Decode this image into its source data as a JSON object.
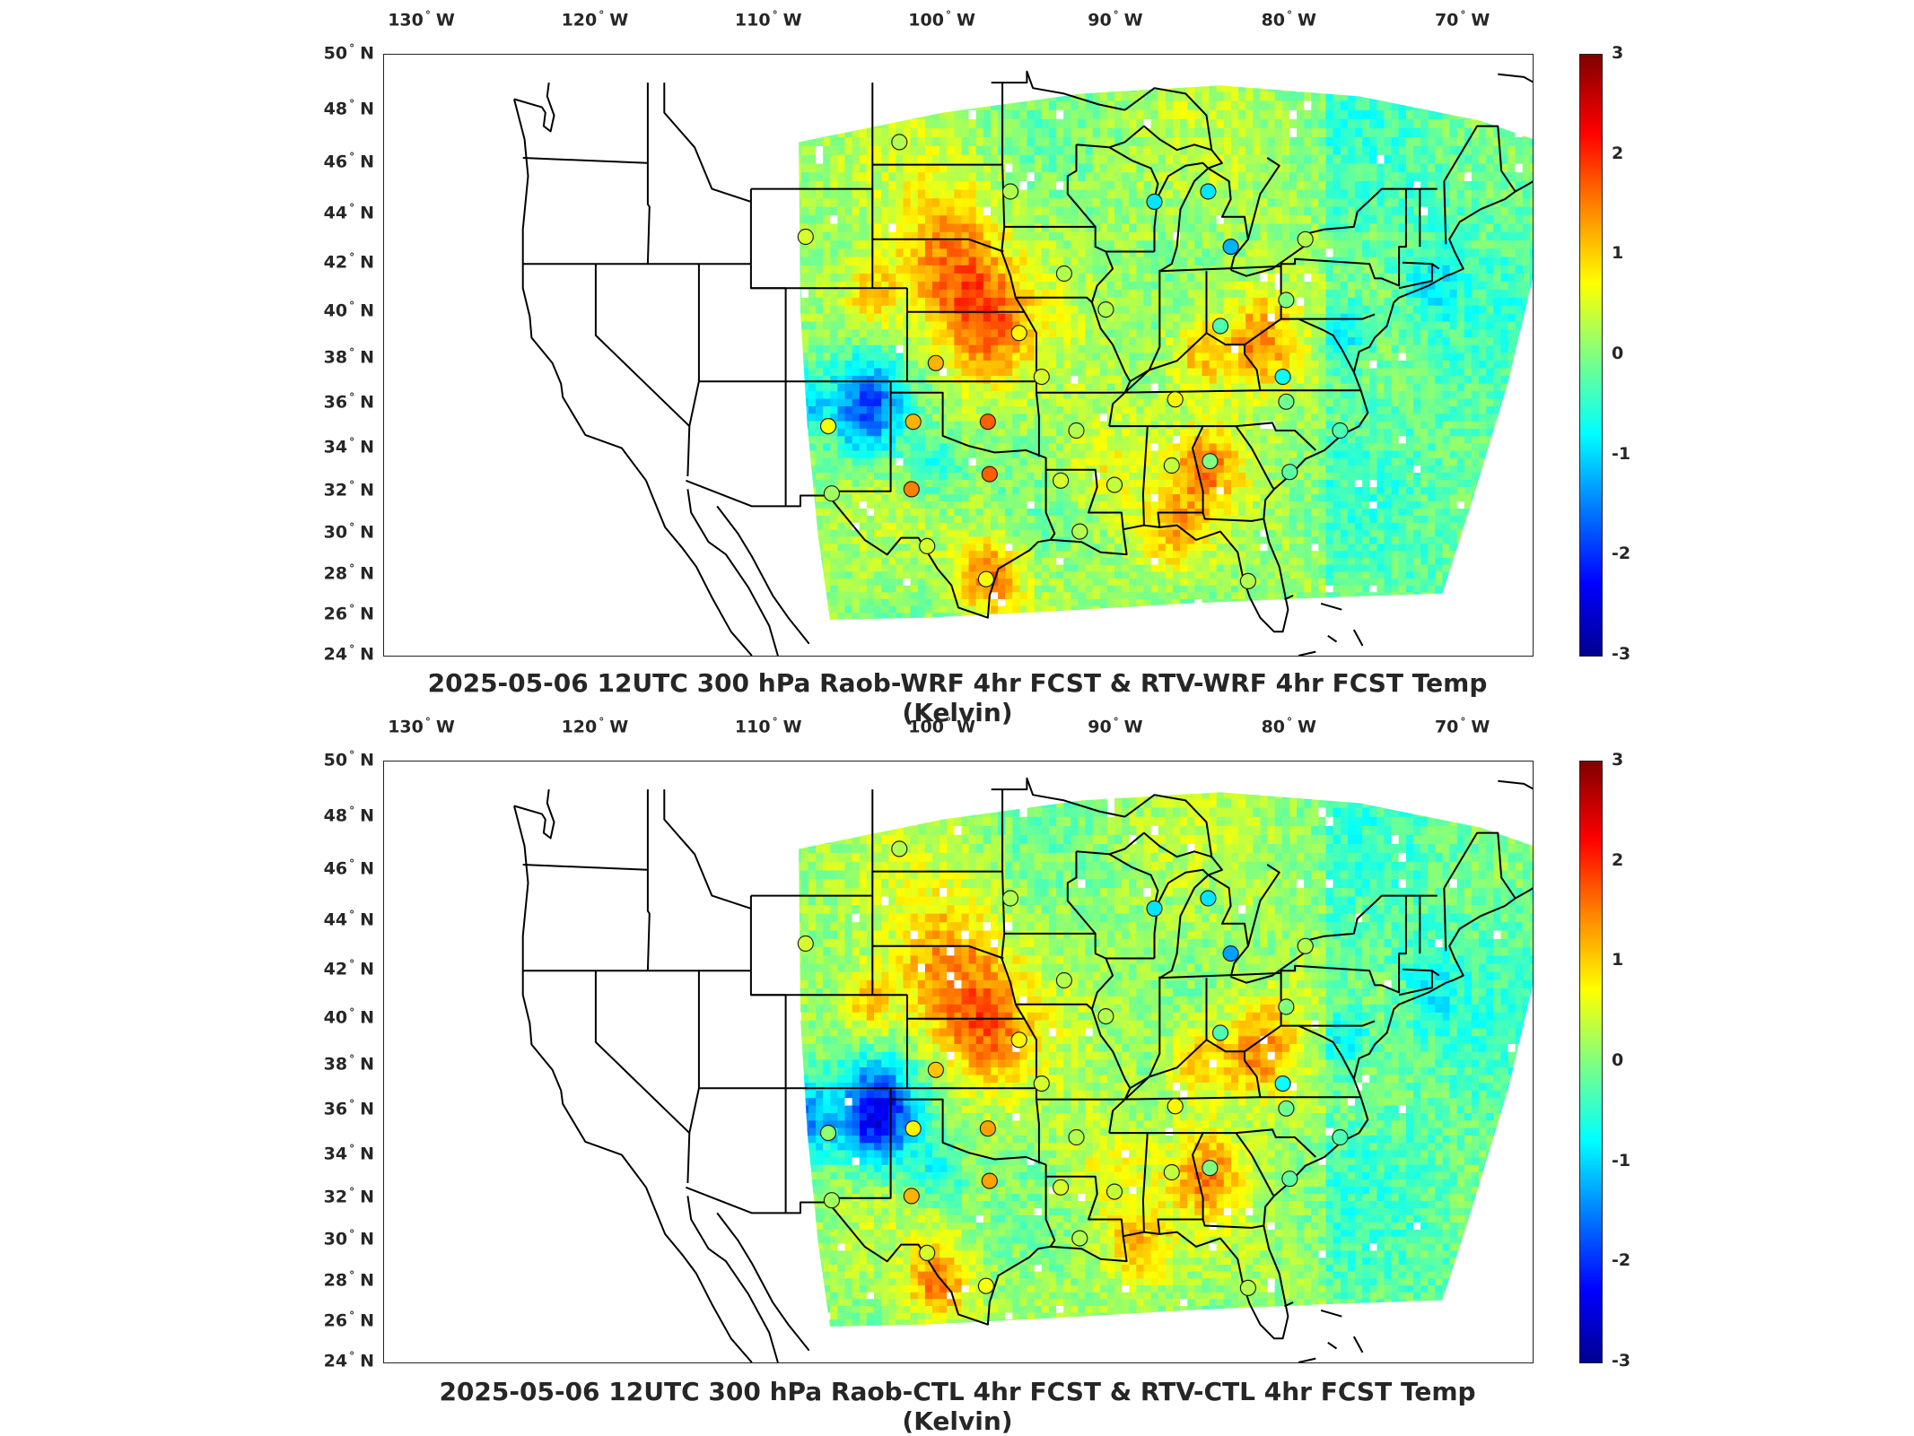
{
  "lon_labels": [
    "130",
    "120",
    "110",
    "100",
    "90",
    "80",
    "70"
  ],
  "lon_suffix": "W",
  "lat_labels": [
    "50",
    "48",
    "46",
    "44",
    "42",
    "40",
    "38",
    "36",
    "34",
    "32",
    "30",
    "28",
    "26",
    "24"
  ],
  "lat_suffix": "N",
  "degree_symbol": "°",
  "colorbar": {
    "ticks": [
      "3",
      "2",
      "1",
      "0",
      "-1",
      "-2",
      "-3"
    ],
    "colormap": "jet",
    "range": [
      -3,
      3
    ],
    "colors": [
      "#00008f",
      "#0000ff",
      "#0080ff",
      "#00ffff",
      "#80ff80",
      "#ffff00",
      "#ff8000",
      "#ff0000",
      "#800000"
    ]
  },
  "panels": [
    {
      "title": "2025-05-06 12UTC 300 hPa Raob-WRF 4hr FCST & RTV-WRF 4hr FCST Temp (Kelvin)",
      "stations": [
        {
          "lon": -102.5,
          "lat": 46.8,
          "value": 0.3
        },
        {
          "lon": -107.9,
          "lat": 43.1,
          "value": 0.5
        },
        {
          "lon": -96.1,
          "lat": 44.9,
          "value": 0.3
        },
        {
          "lon": -87.8,
          "lat": 44.5,
          "value": -0.9
        },
        {
          "lon": -84.7,
          "lat": 44.9,
          "value": -0.9
        },
        {
          "lon": -83.4,
          "lat": 42.7,
          "value": -1.2
        },
        {
          "lon": -79.1,
          "lat": 43.0,
          "value": 0.3
        },
        {
          "lon": -93.0,
          "lat": 41.6,
          "value": 0.3
        },
        {
          "lon": -90.6,
          "lat": 40.1,
          "value": 0.3
        },
        {
          "lon": -80.2,
          "lat": 40.5,
          "value": 0.0
        },
        {
          "lon": -84.0,
          "lat": 39.4,
          "value": -0.3
        },
        {
          "lon": -95.6,
          "lat": 39.1,
          "value": 0.8
        },
        {
          "lon": -100.4,
          "lat": 37.8,
          "value": 1.2
        },
        {
          "lon": -94.3,
          "lat": 37.2,
          "value": 0.5
        },
        {
          "lon": -80.4,
          "lat": 37.2,
          "value": -0.7
        },
        {
          "lon": -86.6,
          "lat": 36.2,
          "value": 0.8
        },
        {
          "lon": -80.2,
          "lat": 36.1,
          "value": -0.1
        },
        {
          "lon": -101.7,
          "lat": 35.2,
          "value": 1.2
        },
        {
          "lon": -97.4,
          "lat": 35.2,
          "value": 1.7
        },
        {
          "lon": -106.6,
          "lat": 35.0,
          "value": 0.7
        },
        {
          "lon": -92.3,
          "lat": 34.8,
          "value": 0.3
        },
        {
          "lon": -77.1,
          "lat": 34.8,
          "value": -0.3
        },
        {
          "lon": -86.8,
          "lat": 33.2,
          "value": 0.4
        },
        {
          "lon": -84.6,
          "lat": 33.4,
          "value": 0.0
        },
        {
          "lon": -97.3,
          "lat": 32.8,
          "value": 1.7
        },
        {
          "lon": -101.8,
          "lat": 32.1,
          "value": 1.5
        },
        {
          "lon": -93.2,
          "lat": 32.5,
          "value": 0.5
        },
        {
          "lon": -90.1,
          "lat": 32.3,
          "value": 0.4
        },
        {
          "lon": -80.0,
          "lat": 32.9,
          "value": -0.2
        },
        {
          "lon": -106.4,
          "lat": 31.9,
          "value": 0.2
        },
        {
          "lon": -92.1,
          "lat": 30.1,
          "value": 0.3
        },
        {
          "lon": -100.9,
          "lat": 29.4,
          "value": 0.5
        },
        {
          "lon": -97.5,
          "lat": 27.8,
          "value": 0.7
        },
        {
          "lon": -82.4,
          "lat": 27.7,
          "value": 0.3
        }
      ]
    },
    {
      "title": "2025-05-06 12UTC 300 hPa Raob-CTL 4hr FCST & RTV-CTL 4hr FCST Temp (Kelvin)",
      "stations": [
        {
          "lon": -102.5,
          "lat": 46.8,
          "value": 0.3
        },
        {
          "lon": -107.9,
          "lat": 43.1,
          "value": 0.5
        },
        {
          "lon": -96.1,
          "lat": 44.9,
          "value": 0.3
        },
        {
          "lon": -87.8,
          "lat": 44.5,
          "value": -0.9
        },
        {
          "lon": -84.7,
          "lat": 44.9,
          "value": -0.9
        },
        {
          "lon": -83.4,
          "lat": 42.7,
          "value": -1.3
        },
        {
          "lon": -79.1,
          "lat": 43.0,
          "value": 0.3
        },
        {
          "lon": -93.0,
          "lat": 41.6,
          "value": 0.3
        },
        {
          "lon": -90.6,
          "lat": 40.1,
          "value": 0.3
        },
        {
          "lon": -80.2,
          "lat": 40.5,
          "value": 0.0
        },
        {
          "lon": -84.0,
          "lat": 39.4,
          "value": -0.3
        },
        {
          "lon": -95.6,
          "lat": 39.1,
          "value": 0.8
        },
        {
          "lon": -100.4,
          "lat": 37.8,
          "value": 1.1
        },
        {
          "lon": -94.3,
          "lat": 37.2,
          "value": 0.5
        },
        {
          "lon": -80.4,
          "lat": 37.2,
          "value": -0.7
        },
        {
          "lon": -86.6,
          "lat": 36.2,
          "value": 0.8
        },
        {
          "lon": -80.2,
          "lat": 36.1,
          "value": -0.1
        },
        {
          "lon": -101.7,
          "lat": 35.2,
          "value": 0.8
        },
        {
          "lon": -97.4,
          "lat": 35.2,
          "value": 1.3
        },
        {
          "lon": -106.6,
          "lat": 35.0,
          "value": 0.1
        },
        {
          "lon": -92.3,
          "lat": 34.8,
          "value": 0.3
        },
        {
          "lon": -77.1,
          "lat": 34.8,
          "value": -0.3
        },
        {
          "lon": -86.8,
          "lat": 33.2,
          "value": 0.4
        },
        {
          "lon": -84.6,
          "lat": 33.4,
          "value": 0.0
        },
        {
          "lon": -97.3,
          "lat": 32.8,
          "value": 1.3
        },
        {
          "lon": -101.8,
          "lat": 32.1,
          "value": 1.2
        },
        {
          "lon": -93.2,
          "lat": 32.5,
          "value": 0.5
        },
        {
          "lon": -90.1,
          "lat": 32.3,
          "value": 0.4
        },
        {
          "lon": -80.0,
          "lat": 32.9,
          "value": -0.2
        },
        {
          "lon": -106.4,
          "lat": 31.9,
          "value": 0.2
        },
        {
          "lon": -92.1,
          "lat": 30.1,
          "value": 0.3
        },
        {
          "lon": -100.9,
          "lat": 29.4,
          "value": 0.5
        },
        {
          "lon": -97.5,
          "lat": 27.8,
          "value": 0.7
        },
        {
          "lon": -82.4,
          "lat": 27.7,
          "value": 0.3
        }
      ]
    }
  ]
}
